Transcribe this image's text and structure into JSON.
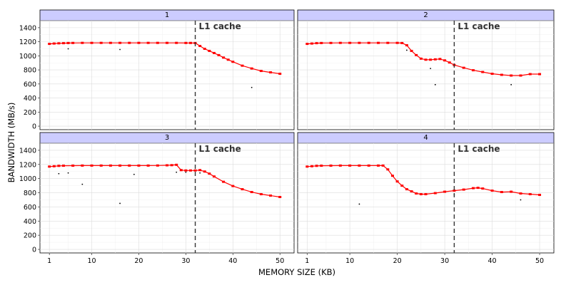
{
  "chart_data": {
    "type": "line",
    "xlabel": "MEMORY SIZE (KB)",
    "ylabel": "BANDWIDTH (MB/s)",
    "xlim": [
      -1,
      53
    ],
    "ylim": [
      -50,
      1500
    ],
    "x_ticks": [
      1,
      10,
      20,
      30,
      40,
      50
    ],
    "y_ticks": [
      0,
      200,
      400,
      600,
      800,
      1000,
      1200,
      1400
    ],
    "grid": true,
    "vline": {
      "x": 32,
      "label": "L1 cache"
    },
    "panels": [
      {
        "name": "1",
        "series": {
          "x": [
            1,
            2,
            3,
            4,
            5,
            6,
            8,
            10,
            12,
            14,
            16,
            18,
            20,
            22,
            24,
            26,
            28,
            30,
            31,
            32,
            33,
            34,
            35,
            36,
            37,
            38,
            39,
            40,
            42,
            44,
            46,
            48,
            50
          ],
          "values": [
            1170,
            1175,
            1178,
            1180,
            1182,
            1183,
            1184,
            1184,
            1184,
            1184,
            1184,
            1184,
            1184,
            1184,
            1184,
            1184,
            1184,
            1183,
            1183,
            1182,
            1140,
            1100,
            1070,
            1040,
            1010,
            975,
            945,
            915,
            860,
            820,
            785,
            765,
            745
          ]
        },
        "outliers": {
          "x": [
            5,
            16,
            44
          ],
          "values": [
            1100,
            1090,
            550
          ]
        }
      },
      {
        "name": "2",
        "series": {
          "x": [
            1,
            2,
            3,
            4,
            6,
            8,
            10,
            12,
            14,
            16,
            18,
            20,
            21,
            22,
            23,
            24,
            25,
            26,
            27,
            28,
            29,
            30,
            31,
            32,
            34,
            36,
            38,
            40,
            42,
            44,
            46,
            48,
            50
          ],
          "values": [
            1170,
            1175,
            1180,
            1182,
            1183,
            1184,
            1184,
            1184,
            1184,
            1184,
            1184,
            1184,
            1182,
            1150,
            1070,
            1010,
            960,
            945,
            945,
            950,
            955,
            935,
            905,
            870,
            830,
            795,
            770,
            745,
            730,
            720,
            720,
            740,
            740
          ]
        },
        "outliers": {
          "x": [
            22,
            27,
            28,
            44
          ],
          "values": [
            1080,
            820,
            590,
            590
          ]
        }
      },
      {
        "name": "3",
        "series": {
          "x": [
            1,
            2,
            3,
            4,
            6,
            8,
            10,
            12,
            14,
            16,
            18,
            20,
            22,
            24,
            26,
            27,
            28,
            29,
            30,
            31,
            32,
            33,
            34,
            35,
            36,
            38,
            40,
            42,
            44,
            46,
            48,
            50
          ],
          "values": [
            1170,
            1175,
            1180,
            1182,
            1183,
            1184,
            1184,
            1184,
            1184,
            1184,
            1184,
            1184,
            1184,
            1185,
            1188,
            1190,
            1195,
            1120,
            1115,
            1115,
            1115,
            1120,
            1100,
            1070,
            1030,
            955,
            895,
            850,
            810,
            780,
            760,
            740
          ]
        },
        "outliers": {
          "x": [
            3,
            5,
            8,
            16,
            19,
            28,
            30,
            33
          ],
          "values": [
            1070,
            1080,
            920,
            650,
            1060,
            1090,
            1090,
            1080
          ]
        }
      },
      {
        "name": "4",
        "series": {
          "x": [
            1,
            2,
            3,
            4,
            6,
            8,
            10,
            12,
            14,
            16,
            17,
            18,
            19,
            20,
            21,
            22,
            23,
            24,
            25,
            26,
            28,
            30,
            32,
            34,
            36,
            37,
            38,
            40,
            42,
            44,
            46,
            48,
            50
          ],
          "values": [
            1170,
            1175,
            1180,
            1182,
            1183,
            1184,
            1184,
            1184,
            1184,
            1184,
            1184,
            1130,
            1040,
            960,
            900,
            850,
            820,
            790,
            780,
            780,
            795,
            815,
            830,
            845,
            865,
            870,
            860,
            830,
            810,
            815,
            790,
            780,
            770
          ]
        },
        "outliers": {
          "x": [
            12,
            32,
            46
          ],
          "values": [
            640,
            770,
            700
          ]
        }
      }
    ]
  }
}
